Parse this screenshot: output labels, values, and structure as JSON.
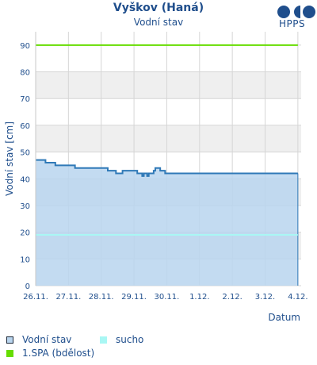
{
  "header": {
    "title": "Vyškov (Haná)",
    "subtitle": "Vodní stav",
    "logo_text": "HPPS"
  },
  "colors": {
    "series": "#2f79b7",
    "series_fill": "#b9d5ee",
    "sucho": "#a9f7f4",
    "spa1": "#66dd00",
    "axis_text": "#1f4e8c",
    "band": "#efefef",
    "grid": "#d6d6d6"
  },
  "chart_data": {
    "type": "area",
    "title": "Vyškov (Haná)",
    "subtitle": "Vodní stav",
    "xlabel": "Datum",
    "ylabel": "Vodní stav [cm]",
    "ylim": [
      0,
      95
    ],
    "yticks": [
      0,
      10,
      20,
      30,
      40,
      50,
      60,
      70,
      80,
      90
    ],
    "xlim": [
      0,
      8.1
    ],
    "xtick_labels": [
      "26.11.",
      "27.11.",
      "28.11.",
      "29.11.",
      "30.11.",
      "1.12.",
      "2.12.",
      "3.12.",
      "4.12."
    ],
    "grid": true,
    "series": [
      {
        "name": "Vodní stav",
        "x": [
          0,
          0.3,
          0.3,
          0.6,
          0.6,
          1.2,
          1.2,
          2.2,
          2.2,
          2.45,
          2.45,
          2.65,
          2.65,
          3.1,
          3.1,
          3.25,
          3.25,
          3.3,
          3.3,
          3.4,
          3.4,
          3.45,
          3.45,
          3.55,
          3.55,
          3.6,
          3.6,
          3.65,
          3.65,
          3.8,
          3.8,
          3.95,
          3.95,
          5.55,
          5.55,
          8.0
        ],
        "y": [
          47,
          47,
          46,
          46,
          45,
          45,
          44,
          44,
          43,
          43,
          42,
          42,
          43,
          43,
          42,
          42,
          41,
          41,
          42,
          42,
          41,
          41,
          42,
          42,
          42,
          42,
          43,
          43,
          44,
          44,
          43,
          43,
          42,
          42,
          42,
          42
        ]
      },
      {
        "name": "sucho",
        "value": 19
      },
      {
        "name": "1.SPA (bdělost)",
        "value": 90
      }
    ],
    "legend": {
      "position": "bottom-left",
      "items": [
        "Vodní stav",
        "sucho",
        "1.SPA (bdělost)"
      ]
    }
  }
}
